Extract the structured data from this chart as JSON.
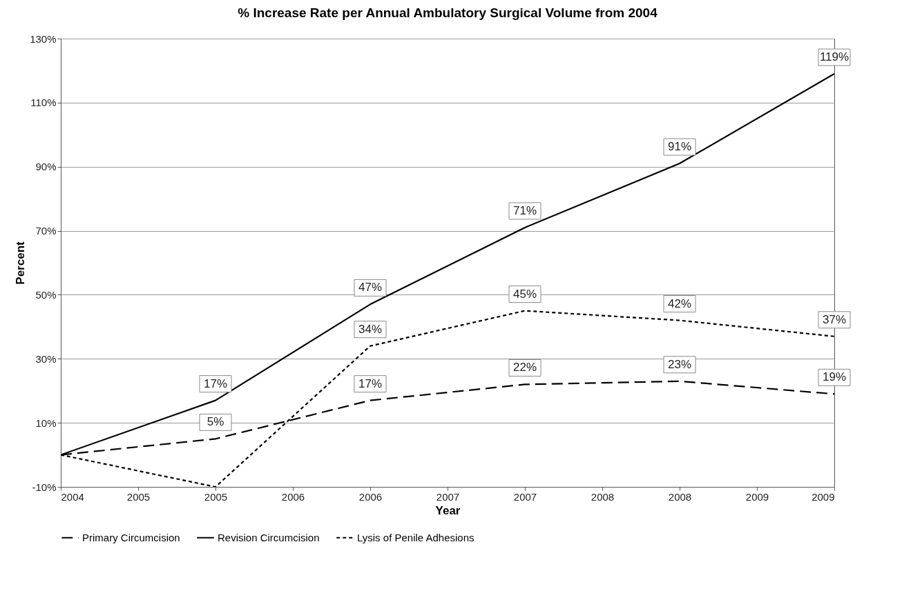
{
  "chart_data": {
    "type": "line",
    "title": "% Increase Rate per Annual Ambulatory Surgical Volume from 2004",
    "xlabel": "Year",
    "ylabel": "Percent",
    "categories": [
      "2004",
      "2005",
      "2005",
      "2006",
      "2006",
      "2007",
      "2007",
      "2008",
      "2008",
      "2009",
      "2009"
    ],
    "ylim": [
      -10,
      130
    ],
    "yticks": [
      {
        "value": -10,
        "label": "-10%"
      },
      {
        "value": 10,
        "label": "10%"
      },
      {
        "value": 30,
        "label": "30%"
      },
      {
        "value": 50,
        "label": "50%"
      },
      {
        "value": 70,
        "label": "70%"
      },
      {
        "value": 90,
        "label": "90%"
      },
      {
        "value": 110,
        "label": "110%"
      },
      {
        "value": 130,
        "label": "130%"
      }
    ],
    "grid": "y",
    "legend": "bottom",
    "series": [
      {
        "name": "Primary Circumcision",
        "color": "#000000",
        "line_style": "dashed",
        "values": [
          0,
          null,
          5,
          null,
          17,
          null,
          22,
          null,
          23,
          null,
          19
        ],
        "value_labels": [
          null,
          null,
          "5%",
          null,
          "17%",
          null,
          "22%",
          null,
          "23%",
          null,
          "19%"
        ]
      },
      {
        "name": "Revision Circumcision",
        "color": "#000000",
        "line_style": "solid",
        "values": [
          0,
          null,
          17,
          null,
          47,
          null,
          71,
          null,
          91,
          null,
          119
        ],
        "value_labels": [
          null,
          null,
          "17%",
          null,
          "47%",
          null,
          "71%",
          null,
          "91%",
          null,
          "119%"
        ]
      },
      {
        "name": "Lysis of Penile Adhesions",
        "color": "#000000",
        "line_style": "dotted",
        "values": [
          0,
          null,
          -10,
          null,
          34,
          null,
          45,
          null,
          42,
          null,
          37
        ],
        "value_labels": [
          null,
          null,
          null,
          null,
          "34%",
          null,
          "45%",
          null,
          "42%",
          null,
          "37%"
        ]
      }
    ]
  }
}
